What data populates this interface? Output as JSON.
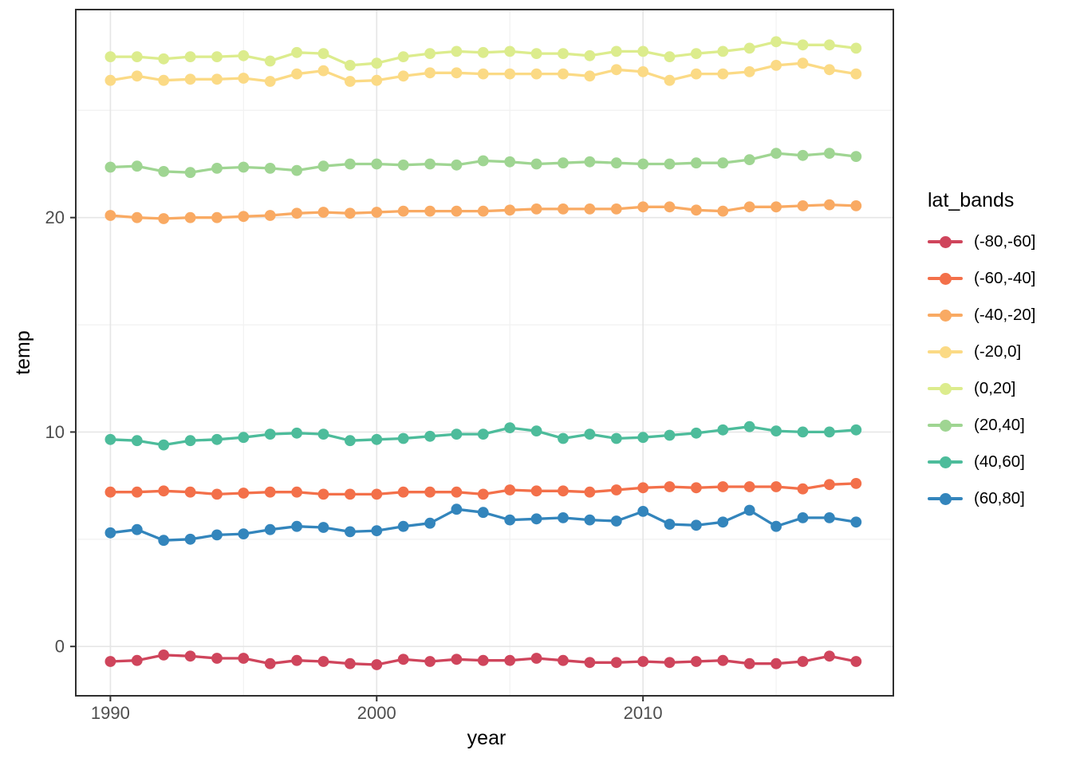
{
  "chart_data": {
    "type": "line",
    "title": "",
    "xlabel": "year",
    "ylabel": "temp",
    "legend_title": "lat_bands",
    "legend_position": "right",
    "grid": true,
    "marker": "point",
    "x": [
      1990,
      1991,
      1992,
      1993,
      1994,
      1995,
      1996,
      1997,
      1998,
      1999,
      2000,
      2001,
      2002,
      2003,
      2004,
      2005,
      2006,
      2007,
      2008,
      2009,
      2010,
      2011,
      2012,
      2013,
      2014,
      2015,
      2016,
      2017,
      2018
    ],
    "xlim": [
      1988.7,
      2019.4
    ],
    "ylim": [
      -2.3,
      29.7
    ],
    "x_major_ticks": [
      1990,
      2000,
      2010
    ],
    "x_minor_gridlines": [
      1995,
      2005,
      2015
    ],
    "y_major_ticks": [
      0,
      10,
      20
    ],
    "y_minor_gridlines": [
      5,
      15,
      25
    ],
    "series": [
      {
        "name": "(-80,-60]",
        "color": "#cf455c",
        "values": [
          -0.7,
          -0.65,
          -0.4,
          -0.45,
          -0.55,
          -0.55,
          -0.8,
          -0.65,
          -0.7,
          -0.8,
          -0.85,
          -0.6,
          -0.7,
          -0.6,
          -0.65,
          -0.65,
          -0.55,
          -0.65,
          -0.75,
          -0.75,
          -0.7,
          -0.75,
          -0.7,
          -0.65,
          -0.8,
          -0.8,
          -0.7,
          -0.45,
          -0.7
        ]
      },
      {
        "name": "(-60,-40]",
        "color": "#f3704a",
        "values": [
          7.2,
          7.2,
          7.25,
          7.2,
          7.1,
          7.15,
          7.2,
          7.2,
          7.1,
          7.1,
          7.1,
          7.2,
          7.2,
          7.2,
          7.1,
          7.3,
          7.25,
          7.25,
          7.2,
          7.3,
          7.4,
          7.45,
          7.4,
          7.45,
          7.45,
          7.45,
          7.35,
          7.55,
          7.6
        ]
      },
      {
        "name": "(-40,-20]",
        "color": "#f9aa63",
        "values": [
          20.1,
          20.0,
          19.95,
          20.0,
          20.0,
          20.05,
          20.1,
          20.2,
          20.25,
          20.2,
          20.25,
          20.3,
          20.3,
          20.3,
          20.3,
          20.35,
          20.4,
          20.4,
          20.4,
          20.4,
          20.5,
          20.5,
          20.35,
          20.3,
          20.5,
          20.5,
          20.55,
          20.6,
          20.55
        ]
      },
      {
        "name": "(-20,0]",
        "color": "#fbda85",
        "values": [
          26.4,
          26.6,
          26.4,
          26.45,
          26.45,
          26.5,
          26.35,
          26.7,
          26.85,
          26.35,
          26.4,
          26.6,
          26.75,
          26.75,
          26.7,
          26.7,
          26.7,
          26.7,
          26.6,
          26.9,
          26.8,
          26.4,
          26.7,
          26.7,
          26.8,
          27.1,
          27.2,
          26.9,
          26.7
        ]
      },
      {
        "name": "(0,20]",
        "color": "#dcec8d",
        "values": [
          27.5,
          27.5,
          27.4,
          27.5,
          27.5,
          27.55,
          27.3,
          27.7,
          27.65,
          27.1,
          27.2,
          27.5,
          27.65,
          27.75,
          27.7,
          27.75,
          27.65,
          27.65,
          27.55,
          27.75,
          27.75,
          27.5,
          27.65,
          27.75,
          27.9,
          28.2,
          28.05,
          28.05,
          27.9
        ]
      },
      {
        "name": "(20,40]",
        "color": "#9fd592",
        "values": [
          22.35,
          22.4,
          22.15,
          22.1,
          22.3,
          22.35,
          22.3,
          22.2,
          22.4,
          22.5,
          22.5,
          22.45,
          22.5,
          22.45,
          22.65,
          22.6,
          22.5,
          22.55,
          22.6,
          22.55,
          22.5,
          22.5,
          22.55,
          22.55,
          22.7,
          23.0,
          22.9,
          23.0,
          22.85
        ]
      },
      {
        "name": "(40,60]",
        "color": "#4dbc9b",
        "values": [
          9.65,
          9.6,
          9.4,
          9.6,
          9.65,
          9.75,
          9.9,
          9.95,
          9.9,
          9.6,
          9.65,
          9.7,
          9.8,
          9.9,
          9.9,
          10.2,
          10.05,
          9.7,
          9.9,
          9.7,
          9.75,
          9.85,
          9.95,
          10.1,
          10.25,
          10.05,
          10.0,
          10.0,
          10.1
        ]
      },
      {
        "name": "(60,80]",
        "color": "#3385bc",
        "values": [
          5.3,
          5.45,
          4.95,
          5.0,
          5.2,
          5.25,
          5.45,
          5.6,
          5.55,
          5.35,
          5.4,
          5.6,
          5.75,
          6.4,
          6.25,
          5.9,
          5.95,
          6.0,
          5.9,
          5.85,
          6.3,
          5.7,
          5.65,
          5.8,
          6.35,
          5.6,
          6.0,
          6.0,
          5.8
        ]
      }
    ]
  },
  "styles": {
    "background": "#ffffff",
    "panel_fill": "#ffffff",
    "panel_border": "#2f2f2f",
    "grid_major": "#e6e6e6",
    "grid_minor": "#f2f2f2",
    "tick_mark_color": "#333333",
    "tick_label_color": "#4d4d4d",
    "axis_title_color": "#000000"
  }
}
